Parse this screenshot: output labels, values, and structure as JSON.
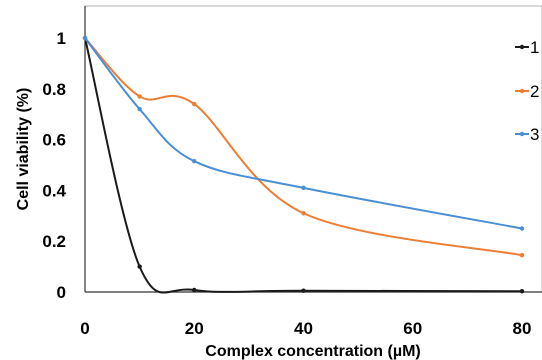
{
  "chart_data": {
    "type": "line",
    "title": "",
    "xlabel": "Complex concentration (µM)",
    "ylabel": "Cell viability (%)",
    "xlim": [
      0,
      80
    ],
    "ylim": [
      0,
      1
    ],
    "x_ticks": [
      "0",
      "20",
      "40",
      "60",
      "80"
    ],
    "y_ticks": [
      "0",
      "0.2",
      "0.4",
      "0.6",
      "0.8",
      "1"
    ],
    "grid": false,
    "legend_position": "right",
    "series": [
      {
        "name": "1",
        "color": "#1a1a1a",
        "x": [
          0,
          10,
          20,
          40,
          80
        ],
        "y": [
          1.0,
          0.1,
          0.008,
          0.005,
          0.003
        ]
      },
      {
        "name": "2",
        "color": "#ed7d31",
        "x": [
          0,
          10,
          20,
          40,
          80
        ],
        "y": [
          1.0,
          0.77,
          0.74,
          0.31,
          0.145
        ]
      },
      {
        "name": "3",
        "color": "#4a8fd4",
        "x": [
          0,
          10,
          20,
          40,
          80
        ],
        "y": [
          1.0,
          0.72,
          0.515,
          0.41,
          0.25
        ]
      }
    ]
  }
}
